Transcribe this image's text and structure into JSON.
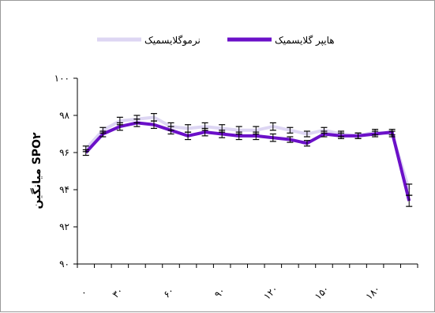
{
  "chart_data": {
    "type": "line",
    "ylabel": "میانگین SPO۲",
    "ylim": [
      90,
      100
    ],
    "y_ticks": [
      90,
      92,
      94,
      96,
      98,
      100
    ],
    "y_tick_labels": [
      "۹۰",
      "۹۲",
      "۹۴",
      "۹۶",
      "۹۸",
      "۱۰۰"
    ],
    "x_tick_labels": [
      "۰",
      "۳۰",
      "۶۰",
      "۹۰",
      "۱۲۰",
      "۱۵۰",
      "۱۸۰"
    ],
    "x_tick_indices": [
      0,
      2,
      5,
      8,
      11,
      14,
      17
    ],
    "num_points": 20,
    "grid": false,
    "legend_position": "top",
    "series": [
      {
        "name": "نرموگلایسمیک",
        "color": "#ddd6f3",
        "values": [
          96.2,
          97.2,
          97.7,
          97.8,
          97.9,
          97.4,
          97.3,
          97.4,
          97.3,
          97.2,
          97.2,
          97.4,
          97.2,
          97.0,
          97.2,
          97.0,
          96.9,
          97.1,
          97.0,
          94.0
        ],
        "errors": [
          0.15,
          0.15,
          0.2,
          0.2,
          0.2,
          0.2,
          0.2,
          0.2,
          0.2,
          0.2,
          0.2,
          0.2,
          0.15,
          0.15,
          0.15,
          0.15,
          0.15,
          0.15,
          0.15,
          0.3
        ]
      },
      {
        "name": "هایپر گلایسمیک",
        "color": "#6b10c8",
        "values": [
          96.0,
          97.0,
          97.4,
          97.6,
          97.5,
          97.2,
          96.9,
          97.1,
          97.0,
          96.9,
          96.9,
          96.8,
          96.7,
          96.5,
          97.0,
          96.9,
          96.9,
          97.0,
          97.1,
          93.4
        ],
        "errors": [
          0.15,
          0.15,
          0.2,
          0.2,
          0.2,
          0.2,
          0.2,
          0.2,
          0.2,
          0.2,
          0.2,
          0.2,
          0.15,
          0.15,
          0.15,
          0.15,
          0.15,
          0.15,
          0.15,
          0.3
        ]
      }
    ]
  }
}
